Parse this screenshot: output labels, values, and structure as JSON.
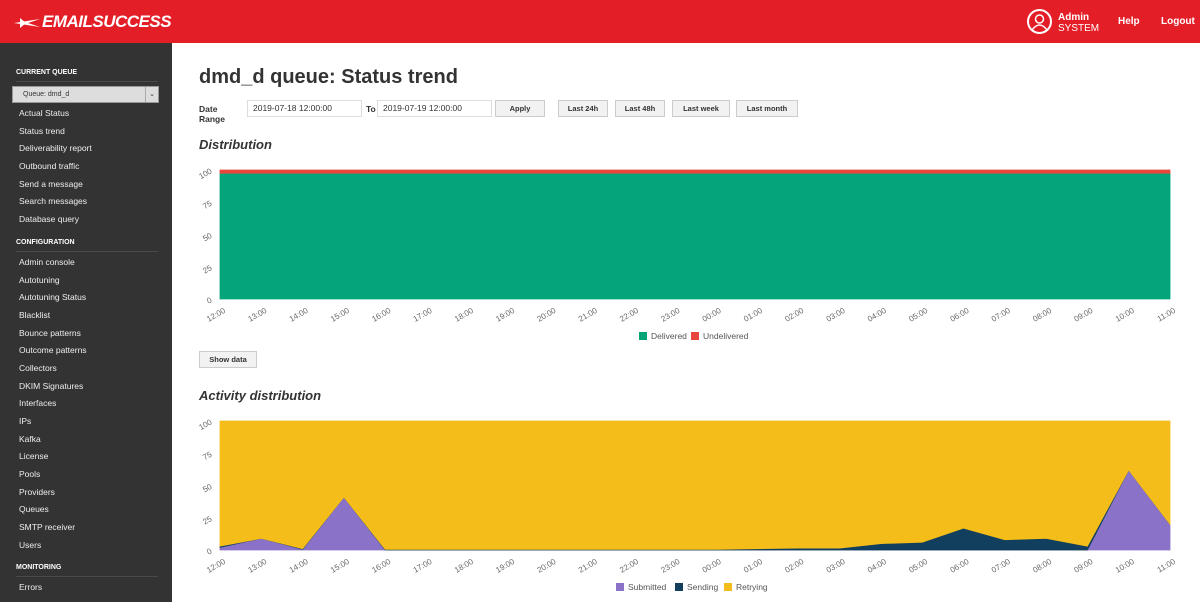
{
  "header": {
    "logo": "EMAILSUCCESS",
    "user_name": "Admin",
    "user_role": "SYSTEM",
    "help": "Help",
    "logout": "Logout",
    "color": "#e31e26"
  },
  "sidebar": {
    "current_queue_title": "CURRENT QUEUE",
    "queue_select": "Queue: dmd_d",
    "queue_items": [
      "Actual Status",
      "Status trend",
      "Deliverability report",
      "Outbound traffic",
      "Send a message",
      "Search messages",
      "Database query"
    ],
    "configuration_title": "CONFIGURATION",
    "config_items": [
      "Admin console",
      "Autotuning",
      "Autotuning Status",
      "Blacklist",
      "Bounce patterns",
      "Outcome patterns",
      "Collectors",
      "DKIM Signatures",
      "Interfaces",
      "IPs",
      "Kafka",
      "License",
      "Pools",
      "Providers",
      "Queues",
      "SMTP receiver",
      "Users"
    ],
    "monitoring_title": "MONITORING",
    "monitoring_items": [
      "Errors"
    ]
  },
  "main": {
    "title": "dmd_d queue: Status trend",
    "date_range_label": "Date Range",
    "from": "2019-07-18 12:00:00",
    "to_label": "To",
    "to": "2019-07-19 12:00:00",
    "apply": "Apply",
    "quick": [
      "Last 24h",
      "Last 48h",
      "Last week",
      "Last month"
    ],
    "show_data": "Show data"
  },
  "chart_data": [
    {
      "type": "area",
      "stacked": true,
      "title": "Distribution",
      "ylim": [
        0,
        100
      ],
      "yticks": [
        0,
        25,
        50,
        75,
        100
      ],
      "categories": [
        "12:00",
        "13:00",
        "14:00",
        "15:00",
        "16:00",
        "17:00",
        "18:00",
        "19:00",
        "20:00",
        "21:00",
        "22:00",
        "23:00",
        "00:00",
        "01:00",
        "02:00",
        "03:00",
        "04:00",
        "05:00",
        "06:00",
        "07:00",
        "08:00",
        "09:00",
        "10:00",
        "11:00"
      ],
      "legend": "bottom",
      "series": [
        {
          "name": "Delivered",
          "color": "#04a57b",
          "values": [
            97.5,
            97.5,
            97.5,
            97.5,
            97.5,
            97.5,
            97.5,
            97.5,
            97.5,
            97.5,
            97.5,
            97.5,
            97.5,
            97.5,
            97.5,
            97.5,
            97.5,
            97.5,
            97.5,
            97.5,
            97.5,
            97.5,
            97.5,
            97.5
          ]
        },
        {
          "name": "Undelivered",
          "color": "#e8463c",
          "values": [
            2.5,
            2.5,
            2.5,
            2.5,
            2.5,
            2.5,
            2.5,
            2.5,
            2.5,
            2.5,
            2.5,
            2.5,
            2.5,
            2.5,
            2.5,
            2.5,
            2.5,
            2.5,
            2.5,
            2.5,
            2.5,
            2.5,
            2.5,
            2.5
          ]
        }
      ]
    },
    {
      "type": "area",
      "stacked": true,
      "title": "Activity distribution",
      "ylim": [
        0,
        100
      ],
      "yticks": [
        0,
        25,
        50,
        75,
        100
      ],
      "categories": [
        "12:00",
        "13:00",
        "14:00",
        "15:00",
        "16:00",
        "17:00",
        "18:00",
        "19:00",
        "20:00",
        "21:00",
        "22:00",
        "23:00",
        "00:00",
        "01:00",
        "02:00",
        "03:00",
        "04:00",
        "05:00",
        "06:00",
        "07:00",
        "08:00",
        "09:00",
        "10:00",
        "11:00"
      ],
      "legend": "bottom",
      "series": [
        {
          "name": "Submitted",
          "color": "#8b72c9",
          "values": [
            2,
            9,
            0.5,
            41,
            0,
            0,
            0,
            0,
            0,
            0,
            0,
            0,
            0,
            0,
            0,
            0,
            0,
            0,
            0,
            0,
            0,
            0,
            62,
            20
          ]
        },
        {
          "name": "Sending",
          "color": "#123f5e",
          "values": [
            1,
            0,
            0.5,
            0,
            0.5,
            0.5,
            0.5,
            0.5,
            0.5,
            0.5,
            0.5,
            0.5,
            0.5,
            1,
            1.5,
            1.5,
            5,
            6,
            17,
            8,
            9,
            3,
            0,
            0
          ]
        },
        {
          "name": "Retrying",
          "color": "#f4bd19",
          "values": [
            97,
            91,
            99,
            59,
            99.5,
            99.5,
            99.5,
            99.5,
            99.5,
            99.5,
            99.5,
            99.5,
            99.5,
            99,
            98.5,
            98.5,
            95,
            94,
            83,
            92,
            91,
            97,
            38,
            80
          ]
        }
      ]
    }
  ]
}
